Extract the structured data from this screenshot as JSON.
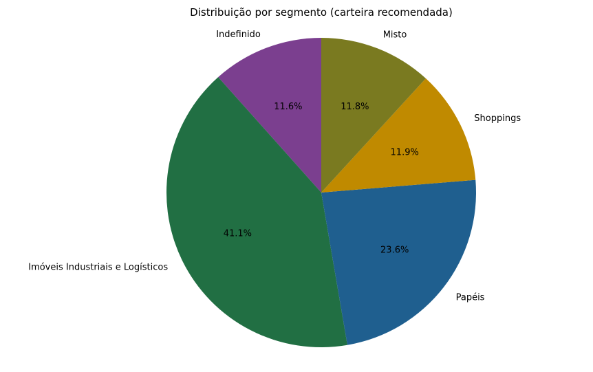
{
  "chart_data": {
    "type": "pie",
    "title": "Distribuição por segmento (carteira recomendada)",
    "start": "top",
    "direction": "counterclockwise",
    "slices": [
      {
        "label": "Indefinido",
        "value": 11.6,
        "pct_label": "11.6%",
        "color": "#7b3f8f"
      },
      {
        "label": "Imóveis Industriais e Logísticos",
        "value": 41.1,
        "pct_label": "41.1%",
        "color": "#216f43"
      },
      {
        "label": "Papéis",
        "value": 23.6,
        "pct_label": "23.6%",
        "color": "#1f5f8f"
      },
      {
        "label": "Shoppings",
        "value": 11.9,
        "pct_label": "11.9%",
        "color": "#c08a00"
      },
      {
        "label": "Misto",
        "value": 11.8,
        "pct_label": "11.8%",
        "color": "#7a7a20"
      }
    ]
  }
}
